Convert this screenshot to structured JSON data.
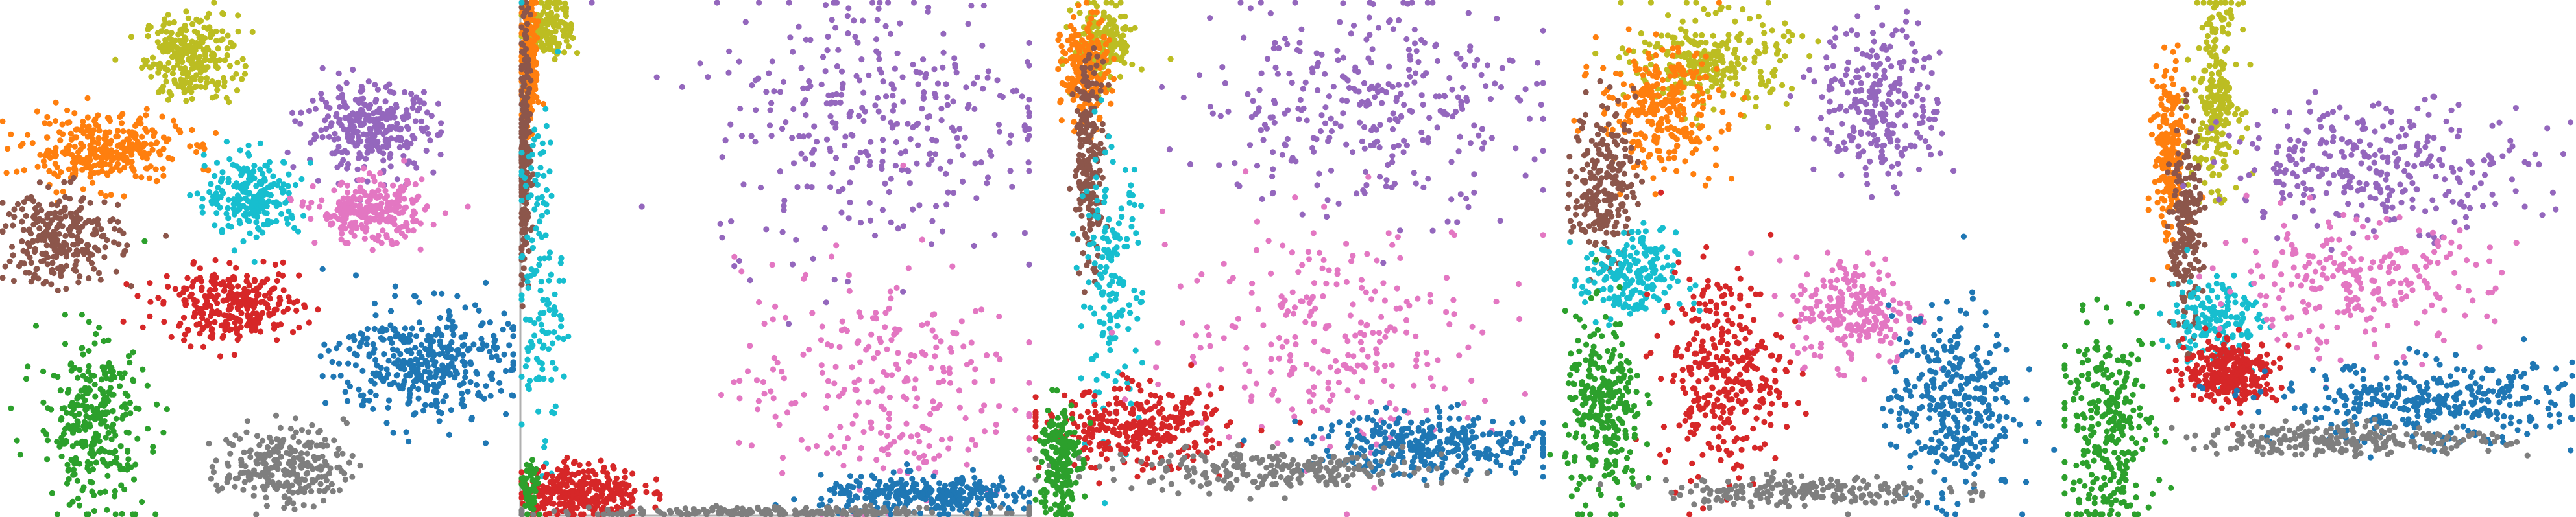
{
  "chart_data": [
    {
      "type": "scatter",
      "panel": 1,
      "title": "",
      "xlabel": "",
      "ylabel": "",
      "axes_visible": false,
      "grid": false,
      "legend": "none",
      "x_range": [
        0,
        1
      ],
      "y_range": [
        0,
        1
      ],
      "series": [
        {
          "color": "#bcbd22",
          "cx": 0.37,
          "cy": 0.89,
          "sx": 0.06,
          "sy": 0.055,
          "count": 260
        },
        {
          "color": "#ff7f0e",
          "cx": 0.2,
          "cy": 0.71,
          "sx": 0.1,
          "sy": 0.045,
          "count": 320
        },
        {
          "color": "#9467bd",
          "cx": 0.72,
          "cy": 0.75,
          "sx": 0.085,
          "sy": 0.055,
          "count": 300
        },
        {
          "color": "#17becf",
          "cx": 0.49,
          "cy": 0.62,
          "sx": 0.06,
          "sy": 0.05,
          "count": 220
        },
        {
          "color": "#e377c2",
          "cx": 0.72,
          "cy": 0.59,
          "sx": 0.07,
          "sy": 0.04,
          "count": 260
        },
        {
          "color": "#8c564b",
          "cx": 0.12,
          "cy": 0.54,
          "sx": 0.075,
          "sy": 0.06,
          "count": 260
        },
        {
          "color": "#d62728",
          "cx": 0.45,
          "cy": 0.41,
          "sx": 0.09,
          "sy": 0.045,
          "count": 300
        },
        {
          "color": "#1f77b4",
          "cx": 0.82,
          "cy": 0.3,
          "sx": 0.11,
          "sy": 0.075,
          "count": 380
        },
        {
          "color": "#2ca02c",
          "cx": 0.18,
          "cy": 0.18,
          "sx": 0.07,
          "sy": 0.11,
          "count": 300
        },
        {
          "color": "#7f7f7f",
          "cx": 0.55,
          "cy": 0.1,
          "sx": 0.08,
          "sy": 0.05,
          "count": 240
        }
      ]
    },
    {
      "type": "scatter",
      "panel": 2,
      "title": "",
      "xlabel": "",
      "ylabel": "",
      "axes_visible": false,
      "grid": false,
      "legend": "none",
      "x_range": [
        0,
        1
      ],
      "y_range": [
        0,
        1
      ],
      "series": [
        {
          "color": "#bcbd22",
          "cx": 0.06,
          "cy": 0.95,
          "sx": 0.03,
          "sy": 0.04,
          "count": 140
        },
        {
          "color": "#ff7f0e",
          "cx": 0.02,
          "cy": 0.88,
          "sx": 0.012,
          "sy": 0.08,
          "count": 200
        },
        {
          "color": "#8c564b",
          "cx": 0.01,
          "cy": 0.7,
          "sx": 0.008,
          "sy": 0.18,
          "count": 200
        },
        {
          "color": "#9467bd",
          "cx": 0.7,
          "cy": 0.78,
          "sx": 0.22,
          "sy": 0.18,
          "count": 340
        },
        {
          "color": "#17becf",
          "cx": 0.04,
          "cy": 0.45,
          "sx": 0.03,
          "sy": 0.22,
          "count": 140
        },
        {
          "color": "#e377c2",
          "cx": 0.7,
          "cy": 0.25,
          "sx": 0.18,
          "sy": 0.16,
          "count": 260
        },
        {
          "color": "#d62728",
          "cx": 0.12,
          "cy": 0.05,
          "sx": 0.08,
          "sy": 0.035,
          "count": 300
        },
        {
          "color": "#1f77b4",
          "cx": 0.8,
          "cy": 0.04,
          "sx": 0.14,
          "sy": 0.025,
          "count": 300
        },
        {
          "color": "#7f7f7f",
          "cx": 0.5,
          "cy": 0.01,
          "sx": 0.3,
          "sy": 0.006,
          "count": 200
        },
        {
          "color": "#2ca02c",
          "cx": 0.02,
          "cy": 0.05,
          "sx": 0.01,
          "sy": 0.04,
          "count": 60
        }
      ]
    },
    {
      "type": "scatter",
      "panel": 3,
      "title": "",
      "xlabel": "",
      "ylabel": "",
      "axes_visible": false,
      "grid": false,
      "legend": "none",
      "x_range": [
        0,
        1
      ],
      "y_range": [
        0,
        1
      ],
      "series": [
        {
          "color": "#bcbd22",
          "cx": 0.14,
          "cy": 0.92,
          "sx": 0.04,
          "sy": 0.05,
          "count": 160
        },
        {
          "color": "#ff7f0e",
          "cx": 0.1,
          "cy": 0.86,
          "sx": 0.03,
          "sy": 0.07,
          "count": 200
        },
        {
          "color": "#8c564b",
          "cx": 0.11,
          "cy": 0.7,
          "sx": 0.02,
          "sy": 0.13,
          "count": 200
        },
        {
          "color": "#9467bd",
          "cx": 0.65,
          "cy": 0.8,
          "sx": 0.22,
          "sy": 0.14,
          "count": 320
        },
        {
          "color": "#17becf",
          "cx": 0.15,
          "cy": 0.45,
          "sx": 0.04,
          "sy": 0.17,
          "count": 160
        },
        {
          "color": "#e377c2",
          "cx": 0.6,
          "cy": 0.35,
          "sx": 0.22,
          "sy": 0.15,
          "count": 260
        },
        {
          "color": "#d62728",
          "cx": 0.2,
          "cy": 0.17,
          "sx": 0.12,
          "sy": 0.05,
          "count": 300
        },
        {
          "color": "#1f77b4",
          "cx": 0.78,
          "cy": 0.14,
          "sx": 0.16,
          "sy": 0.04,
          "count": 320
        },
        {
          "color": "#7f7f7f",
          "cx": 0.48,
          "cy": 0.09,
          "sx": 0.22,
          "sy": 0.025,
          "count": 240
        },
        {
          "color": "#2ca02c",
          "cx": 0.05,
          "cy": 0.11,
          "sx": 0.025,
          "sy": 0.08,
          "count": 200
        }
      ]
    },
    {
      "type": "scatter",
      "panel": 4,
      "title": "",
      "xlabel": "",
      "ylabel": "",
      "axes_visible": false,
      "grid": false,
      "legend": "none",
      "x_range": [
        0,
        1
      ],
      "y_range": [
        0,
        1
      ],
      "series": [
        {
          "color": "#bcbd22",
          "cx": 0.32,
          "cy": 0.88,
          "sx": 0.1,
          "sy": 0.06,
          "count": 260
        },
        {
          "color": "#ff7f0e",
          "cx": 0.22,
          "cy": 0.79,
          "sx": 0.08,
          "sy": 0.08,
          "count": 280
        },
        {
          "color": "#8c564b",
          "cx": 0.11,
          "cy": 0.65,
          "sx": 0.04,
          "sy": 0.1,
          "count": 220
        },
        {
          "color": "#9467bd",
          "cx": 0.65,
          "cy": 0.8,
          "sx": 0.08,
          "sy": 0.1,
          "count": 260
        },
        {
          "color": "#17becf",
          "cx": 0.16,
          "cy": 0.46,
          "sx": 0.06,
          "sy": 0.06,
          "count": 200
        },
        {
          "color": "#e377c2",
          "cx": 0.6,
          "cy": 0.4,
          "sx": 0.08,
          "sy": 0.07,
          "count": 220
        },
        {
          "color": "#d62728",
          "cx": 0.34,
          "cy": 0.28,
          "sx": 0.08,
          "sy": 0.13,
          "count": 320
        },
        {
          "color": "#1f77b4",
          "cx": 0.79,
          "cy": 0.22,
          "sx": 0.08,
          "sy": 0.12,
          "count": 340
        },
        {
          "color": "#7f7f7f",
          "cx": 0.5,
          "cy": 0.05,
          "sx": 0.18,
          "sy": 0.02,
          "count": 200
        },
        {
          "color": "#2ca02c",
          "cx": 0.11,
          "cy": 0.2,
          "sx": 0.05,
          "sy": 0.12,
          "count": 280
        }
      ]
    },
    {
      "type": "scatter",
      "panel": 5,
      "title": "",
      "xlabel": "",
      "ylabel": "",
      "axes_visible": false,
      "grid": false,
      "legend": "none",
      "x_range": [
        0,
        1
      ],
      "y_range": [
        0,
        1
      ],
      "series": [
        {
          "color": "#bcbd22",
          "cx": 0.3,
          "cy": 0.82,
          "sx": 0.03,
          "sy": 0.12,
          "count": 220
        },
        {
          "color": "#ff7f0e",
          "cx": 0.21,
          "cy": 0.7,
          "sx": 0.02,
          "sy": 0.12,
          "count": 200
        },
        {
          "color": "#8c564b",
          "cx": 0.24,
          "cy": 0.55,
          "sx": 0.02,
          "sy": 0.13,
          "count": 200
        },
        {
          "color": "#9467bd",
          "cx": 0.62,
          "cy": 0.68,
          "sx": 0.2,
          "sy": 0.08,
          "count": 300
        },
        {
          "color": "#17becf",
          "cx": 0.3,
          "cy": 0.38,
          "sx": 0.06,
          "sy": 0.06,
          "count": 160
        },
        {
          "color": "#e377c2",
          "cx": 0.56,
          "cy": 0.45,
          "sx": 0.18,
          "sy": 0.08,
          "count": 240
        },
        {
          "color": "#d62728",
          "cx": 0.33,
          "cy": 0.28,
          "sx": 0.06,
          "sy": 0.04,
          "count": 300
        },
        {
          "color": "#1f77b4",
          "cx": 0.72,
          "cy": 0.22,
          "sx": 0.2,
          "sy": 0.05,
          "count": 340
        },
        {
          "color": "#7f7f7f",
          "cx": 0.55,
          "cy": 0.15,
          "sx": 0.2,
          "sy": 0.02,
          "count": 240
        },
        {
          "color": "#2ca02c",
          "cx": 0.09,
          "cy": 0.17,
          "sx": 0.06,
          "sy": 0.13,
          "count": 280
        }
      ]
    }
  ]
}
